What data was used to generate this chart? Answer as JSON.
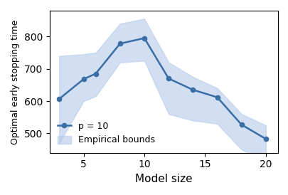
{
  "x": [
    3,
    5,
    6,
    8,
    10,
    12,
    14,
    16,
    18,
    20
  ],
  "y": [
    607,
    668,
    685,
    778,
    795,
    670,
    635,
    612,
    527,
    483
  ],
  "y_upper": [
    740,
    745,
    750,
    840,
    855,
    720,
    675,
    640,
    560,
    525
  ],
  "y_lower": [
    470,
    600,
    615,
    720,
    725,
    560,
    540,
    530,
    450,
    415
  ],
  "line_color": "#3a6ea5",
  "fill_color": "#aec6e8",
  "fill_alpha": 0.55,
  "marker": "o",
  "markersize": 4.5,
  "linewidth": 1.8,
  "xlabel": "Model size",
  "ylabel": "Optimal early stopping time",
  "xticks": [
    5,
    10,
    15,
    20
  ],
  "yticks": [
    500,
    600,
    700,
    800
  ],
  "legend_line_label": "p = 10",
  "legend_fill_label": "Empirical bounds",
  "ylim": [
    440,
    880
  ],
  "xlim": [
    2.2,
    21
  ]
}
